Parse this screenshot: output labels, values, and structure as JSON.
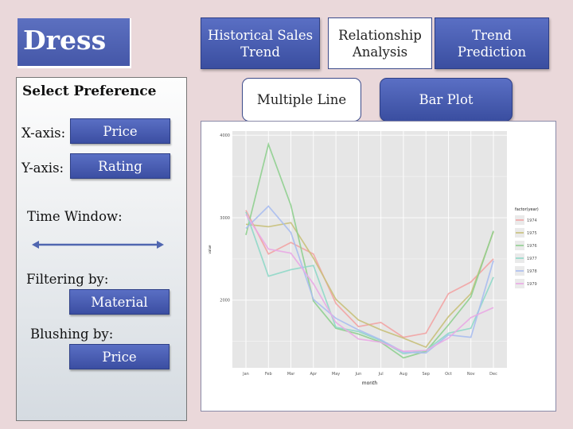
{
  "app": {
    "title": "Dress"
  },
  "nav": {
    "tabs": [
      {
        "label": "Historical Sales\nTrend",
        "style": "blue"
      },
      {
        "label": "Relationship\nAnalysis",
        "style": "white"
      },
      {
        "label": "Trend\nPrediction",
        "style": "blue"
      }
    ],
    "plot_types": [
      {
        "label": "Multiple Line",
        "style": "white"
      },
      {
        "label": "Bar Plot",
        "style": "blue"
      }
    ]
  },
  "panel": {
    "title": "Select Preference",
    "x_axis_label": "X-axis:",
    "x_axis_value": "Price",
    "y_axis_label": "Y-axis:",
    "y_axis_value": "Rating",
    "time_window_label": "Time Window:",
    "filter_label": "Filtering by:",
    "filter_value": "Material",
    "blush_label": "Blushing by:",
    "blush_value": "Price"
  },
  "colors": {
    "accent": "#4a5db0",
    "background": "#ead8da"
  },
  "chart_data": {
    "type": "line",
    "title": "",
    "xlabel": "month",
    "ylabel": "value",
    "categories": [
      "Jan",
      "Feb",
      "Mar",
      "Apr",
      "May",
      "Jun",
      "Jul",
      "Aug",
      "Sep",
      "Oct",
      "Nov",
      "Dec"
    ],
    "ylim": [
      1180,
      4050
    ],
    "yticks": [
      2000,
      3000,
      4000
    ],
    "grid": true,
    "legend_title": "factor(year)",
    "legend_position": "right",
    "series": [
      {
        "name": "1974",
        "color": "#f2a3a3",
        "values": [
          3090,
          2560,
          2700,
          2560,
          1960,
          1680,
          1730,
          1550,
          1600,
          2080,
          2220,
          2500
        ]
      },
      {
        "name": "1975",
        "color": "#c8c07a",
        "values": [
          2920,
          2890,
          2940,
          2510,
          2010,
          1760,
          1640,
          1540,
          1430,
          1800,
          2080,
          2830
        ]
      },
      {
        "name": "1976",
        "color": "#8fcf8f",
        "values": [
          2790,
          3890,
          3150,
          1990,
          1660,
          1590,
          1490,
          1300,
          1380,
          1700,
          2040,
          2840
        ]
      },
      {
        "name": "1977",
        "color": "#8fd8c8",
        "values": [
          3070,
          2290,
          2370,
          2420,
          1670,
          1620,
          1510,
          1350,
          1390,
          1600,
          1660,
          2280
        ]
      },
      {
        "name": "1978",
        "color": "#a9bdf0",
        "values": [
          2870,
          3140,
          2820,
          2010,
          1780,
          1640,
          1520,
          1370,
          1360,
          1580,
          1550,
          2480
        ]
      },
      {
        "name": "1979",
        "color": "#e9a9e4",
        "values": [
          3040,
          2620,
          2570,
          2200,
          1730,
          1530,
          1490,
          1380,
          1390,
          1540,
          1790,
          1910
        ]
      }
    ]
  }
}
